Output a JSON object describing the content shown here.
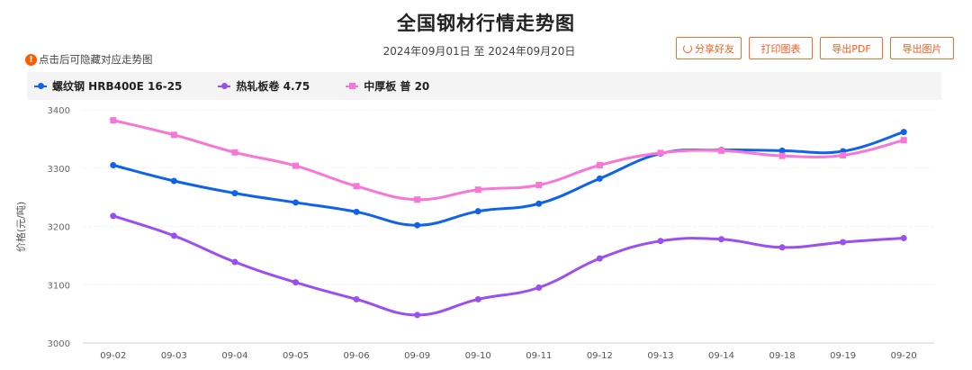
{
  "title": "全国钢材行情走势图",
  "date_range": "2024年09月01日 至 2024年09月20日",
  "hint": "点击后可隐藏对应走势图",
  "buttons": {
    "share": "分享好友",
    "print": "打印图表",
    "pdf": "导出PDF",
    "image": "导出图片"
  },
  "colors": {
    "accent": "#ff5a1a",
    "series1": "#0f63e8",
    "series2": "#9b4ff0",
    "series3": "#f776d6"
  },
  "chart_data": {
    "type": "line",
    "ylabel": "价格(元/吨)",
    "xlabel": "",
    "ylim": [
      3000,
      3400
    ],
    "yticks": [
      3000,
      3100,
      3200,
      3300,
      3400
    ],
    "grid": true,
    "legend_position": "top-left",
    "categories": [
      "09-02",
      "09-03",
      "09-04",
      "09-05",
      "09-06",
      "09-09",
      "09-10",
      "09-11",
      "09-12",
      "09-13",
      "09-14",
      "09-18",
      "09-19",
      "09-20"
    ],
    "series": [
      {
        "name": "螺纹钢 HRB400E 16-25",
        "color": "#0f63e8",
        "marker": "circle",
        "values": [
          3305,
          3278,
          3257,
          3241,
          3225,
          3202,
          3226,
          3239,
          3282,
          3325,
          3331,
          3330,
          3329,
          3362
        ]
      },
      {
        "name": "热轧板卷 4.75",
        "color": "#9b4ff0",
        "marker": "circle",
        "values": [
          3218,
          3184,
          3139,
          3104,
          3075,
          3048,
          3075,
          3095,
          3145,
          3175,
          3178,
          3164,
          3173,
          3180
        ]
      },
      {
        "name": "中厚板 普 20",
        "color": "#f776d6",
        "marker": "square",
        "values": [
          3382,
          3357,
          3327,
          3304,
          3269,
          3246,
          3263,
          3271,
          3305,
          3326,
          3330,
          3321,
          3322,
          3348
        ]
      }
    ]
  }
}
